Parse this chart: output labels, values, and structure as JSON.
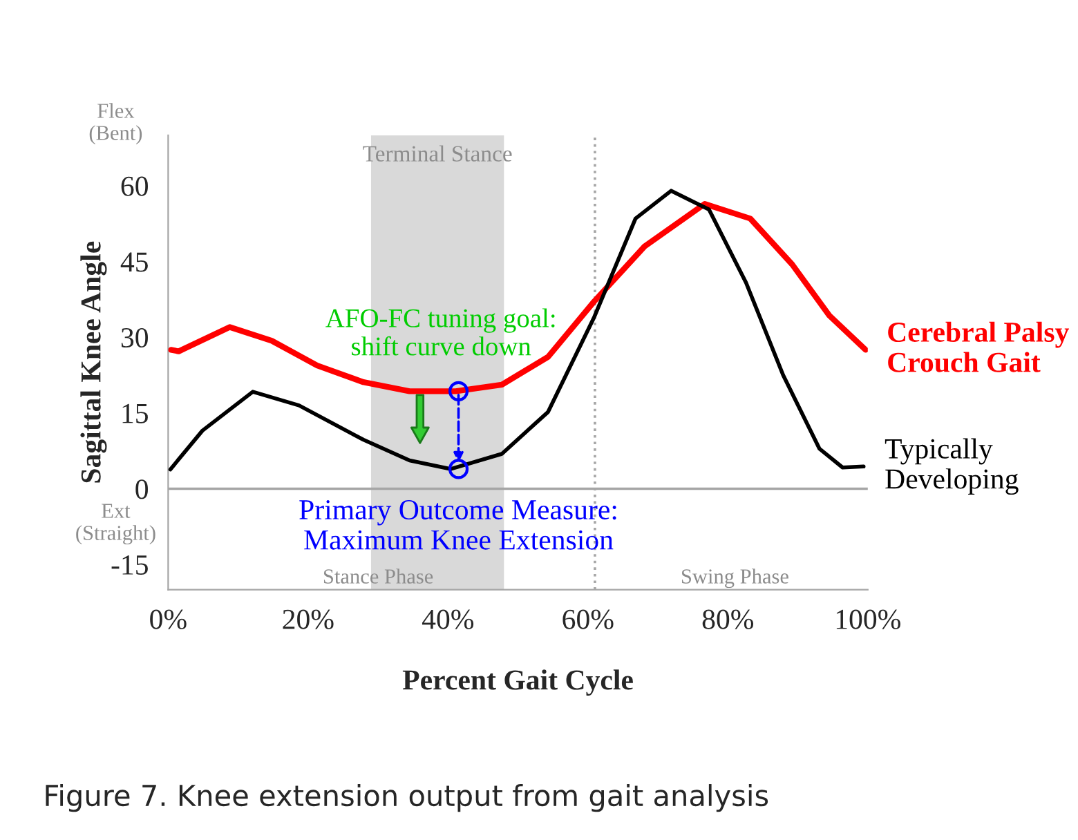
{
  "chart_data": {
    "type": "line",
    "xlabel": "Percent Gait Cycle",
    "ylabel": "Sagittal Knee Angle",
    "series": [
      {
        "name": "Cerebral Palsy\nCrouch Gait",
        "color": "#ff0000",
        "x": [
          0.4,
          1.5,
          8.8,
          14.8,
          21.3,
          27.9,
          34.5,
          41.1,
          47.7,
          54.3,
          60.9,
          68.1,
          76.7,
          83.2,
          89.2,
          94.5,
          99.7
        ],
        "values": [
          27.5,
          27.2,
          32,
          29.3,
          24.4,
          21.1,
          19.3,
          19.3,
          20.6,
          26.1,
          37.1,
          48,
          56.4,
          53.5,
          44.4,
          34.3,
          27.5
        ]
      },
      {
        "name": "Typically\nDeveloping",
        "color": "#000000",
        "x": [
          0.3,
          4.9,
          12.1,
          18.7,
          27.9,
          34.5,
          40.4,
          47.7,
          54.3,
          60.9,
          66.8,
          71.9,
          77.3,
          82.6,
          87.9,
          93.1,
          96.4,
          99.4
        ],
        "values": [
          3.8,
          11.5,
          19.2,
          16.5,
          9.7,
          5.6,
          3.9,
          6.9,
          15.2,
          34,
          53.5,
          59,
          55.3,
          40.8,
          22.5,
          7.9,
          4.2,
          4.4
        ]
      }
    ],
    "xlim": [
      0,
      100
    ],
    "ylim": [
      -20,
      70
    ],
    "xticks": [
      {
        "value": 0,
        "label": "0%"
      },
      {
        "value": 20,
        "label": "20%"
      },
      {
        "value": 40,
        "label": "40%"
      },
      {
        "value": 60,
        "label": "60%"
      },
      {
        "value": 80,
        "label": "80%"
      },
      {
        "value": 100,
        "label": "100%"
      }
    ],
    "yticks": [
      -15,
      0,
      15,
      30,
      45,
      60
    ],
    "bands": [
      {
        "axis": "x",
        "from": 29,
        "to": 48,
        "label": "Terminal Stance",
        "color": "#d9d9d9"
      }
    ],
    "ref_lines": [
      {
        "axis": "x",
        "value": 61,
        "color": "#a6a6a6",
        "line_style": "dotted"
      },
      {
        "axis": "y",
        "value": 0,
        "color": "#a6a6a6",
        "line_style": "solid"
      }
    ],
    "annotations": [
      "Flex\n(Bent)",
      "Ext\n(Straight)",
      {
        "text": "AFO-FC tuning goal:\nshift curve down",
        "x": 36,
        "y": 19.3
      },
      {
        "text": "Primary Outcome Measure:\nMaximum Knee Extension",
        "x": 41.5,
        "y": 3.9
      },
      "Stance Phase",
      "Swing Phase",
      "Figure 7. Knee extension output from gait analysis"
    ],
    "grid": false,
    "legend": false,
    "marker": "none",
    "line_style": "solid"
  }
}
